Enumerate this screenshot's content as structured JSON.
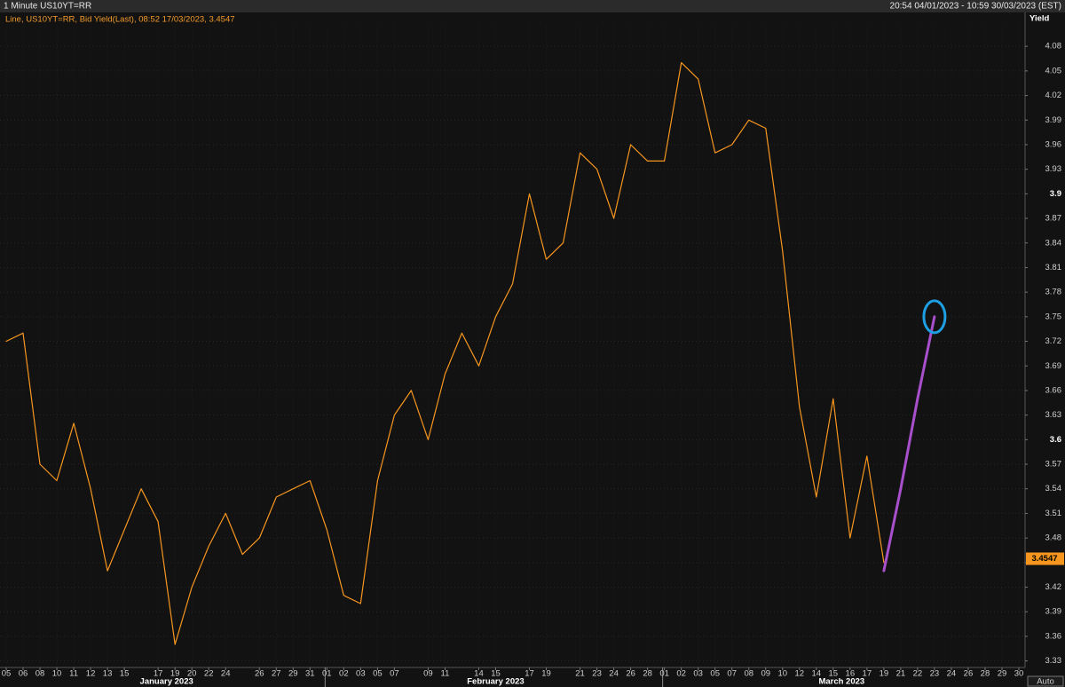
{
  "chart_data": {
    "type": "line",
    "title": "1 Minute US10YT=RR",
    "range_label": "20:54 04/01/2023 - 10:59 30/03/2023 (EST)",
    "y_label": "Yield",
    "auto_button": "Auto",
    "grid": true,
    "categories": [
      "05",
      "06",
      "08",
      "10",
      "11",
      "12",
      "13",
      "15",
      null,
      "17",
      "19",
      "20",
      "22",
      "24",
      null,
      "26",
      "27",
      "29",
      "31",
      "01",
      "02",
      "03",
      "05",
      "07",
      null,
      "09",
      "11",
      null,
      "14",
      "15",
      null,
      "17",
      "19",
      null,
      "21",
      "23",
      "24",
      "26",
      "28",
      "01",
      "02",
      "03",
      "05",
      "07",
      "08",
      "09",
      "10",
      "12",
      "14",
      "15",
      "16",
      "17",
      "19",
      "21",
      "22",
      "23",
      "24",
      "26",
      "28",
      "29",
      "30"
    ],
    "months": [
      "January 2023",
      "February 2023",
      "March 2023"
    ],
    "series": [
      {
        "name": "Line, US10YT=RR, Bid Yield(Last), 08:52 17/03/2023, 3.4547",
        "color": "#f7961f",
        "values": [
          3.72,
          3.73,
          3.57,
          3.55,
          3.62,
          3.54,
          3.44,
          3.49,
          3.54,
          3.5,
          3.35,
          3.42,
          3.47,
          3.51,
          3.46,
          3.48,
          3.53,
          3.54,
          3.55,
          3.49,
          3.41,
          3.4,
          3.55,
          3.63,
          3.66,
          3.6,
          3.68,
          3.73,
          3.69,
          3.75,
          3.79,
          3.9,
          3.82,
          3.84,
          3.95,
          3.93,
          3.87,
          3.96,
          3.94,
          3.94,
          4.06,
          4.04,
          3.95,
          3.96,
          3.99,
          3.98,
          3.83,
          3.64,
          3.53,
          3.65,
          3.48,
          3.58,
          3.45,
          null,
          null,
          null,
          null,
          null,
          null,
          null,
          null
        ]
      },
      {
        "color": "#a84fcc",
        "end_marker_color": "#1e9fe3",
        "values": [
          null,
          null,
          null,
          null,
          null,
          null,
          null,
          null,
          null,
          null,
          null,
          null,
          null,
          null,
          null,
          null,
          null,
          null,
          null,
          null,
          null,
          null,
          null,
          null,
          null,
          null,
          null,
          null,
          null,
          null,
          null,
          null,
          null,
          null,
          null,
          null,
          null,
          null,
          null,
          null,
          null,
          null,
          null,
          null,
          null,
          null,
          null,
          null,
          null,
          null,
          null,
          null,
          3.44,
          3.54,
          3.65,
          3.75,
          null,
          null,
          null,
          null,
          null
        ]
      }
    ],
    "last_value": 3.4547,
    "last_value_color": "#f7961f",
    "ylim": [
      3.322,
      4.104
    ],
    "yticks": [
      3.33,
      3.36,
      3.39,
      3.42,
      3.45,
      3.48,
      3.51,
      3.54,
      3.57,
      3.6,
      3.63,
      3.66,
      3.69,
      3.72,
      3.75,
      3.78,
      3.81,
      3.84,
      3.87,
      3.9,
      3.93,
      3.96,
      3.99,
      4.02,
      4.05,
      4.08
    ]
  }
}
